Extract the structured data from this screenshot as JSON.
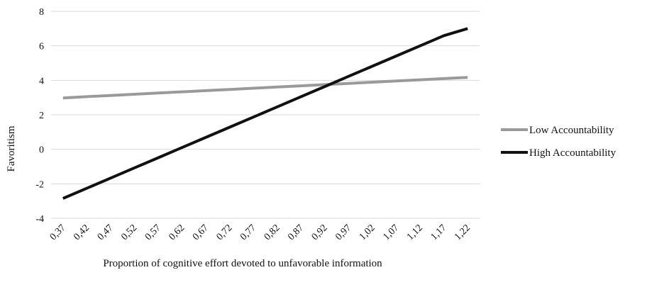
{
  "chart_data": {
    "type": "line",
    "title": "",
    "xlabel": "Proportion of cognitive effort devoted to unfavorable information",
    "ylabel": "Favoritism",
    "categories": [
      "0,37",
      "0,42",
      "0,47",
      "0,52",
      "0,57",
      "0,62",
      "0,67",
      "0,72",
      "0,77",
      "0,82",
      "0,87",
      "0,92",
      "0,97",
      "1,02",
      "1,07",
      "1,12",
      "1,17",
      "1,22"
    ],
    "ylim": [
      -4,
      8
    ],
    "yticks": [
      "-4",
      "-2",
      "0",
      "2",
      "4",
      "6",
      "8"
    ],
    "grid": true,
    "legend_position": "right",
    "series": [
      {
        "name": "Low Accountability",
        "color": "#9a9a9a",
        "values": [
          2.98,
          3.05,
          3.12,
          3.19,
          3.26,
          3.33,
          3.4,
          3.47,
          3.54,
          3.61,
          3.68,
          3.75,
          3.82,
          3.89,
          3.96,
          4.03,
          4.1,
          4.17
        ]
      },
      {
        "name": "High Accountability",
        "color": "#111111",
        "values": [
          -2.85,
          -2.26,
          -1.67,
          -1.08,
          -0.49,
          0.1,
          0.69,
          1.28,
          1.87,
          2.46,
          3.05,
          3.64,
          4.23,
          4.82,
          5.41,
          6.0,
          6.59,
          7.0
        ]
      }
    ]
  }
}
